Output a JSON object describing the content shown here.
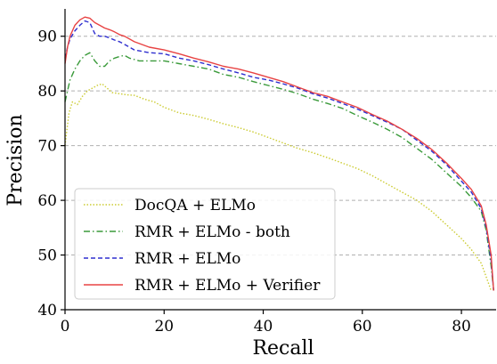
{
  "chart_data": {
    "type": "line",
    "xlabel": "Recall",
    "ylabel": "Precision",
    "xlim": [
      0,
      87
    ],
    "ylim": [
      40,
      95
    ],
    "xticks": [
      0,
      20,
      40,
      60,
      80
    ],
    "yticks": [
      40,
      50,
      60,
      70,
      80,
      90
    ],
    "grid": "horizontal dashed",
    "legend_position": "lower-left",
    "series": [
      {
        "name": "DocQA + ELMo",
        "color": "#cccc33",
        "style": "dotted",
        "points": [
          [
            0,
            70
          ],
          [
            0.4,
            73
          ],
          [
            0.8,
            76
          ],
          [
            1.5,
            78
          ],
          [
            2.5,
            77.5
          ],
          [
            3.5,
            79
          ],
          [
            4.5,
            80
          ],
          [
            5.5,
            80.5
          ],
          [
            6.5,
            81
          ],
          [
            7.5,
            81.3
          ],
          [
            8.5,
            80.5
          ],
          [
            9.5,
            79.7
          ],
          [
            11,
            79.5
          ],
          [
            12.5,
            79.3
          ],
          [
            14,
            79.2
          ],
          [
            16,
            78.5
          ],
          [
            18,
            78
          ],
          [
            20,
            77
          ],
          [
            23,
            76
          ],
          [
            26,
            75.5
          ],
          [
            29,
            74.8
          ],
          [
            32,
            74
          ],
          [
            35,
            73.3
          ],
          [
            38,
            72.5
          ],
          [
            41,
            71.5
          ],
          [
            44,
            70.5
          ],
          [
            47,
            69.5
          ],
          [
            50,
            68.7
          ],
          [
            53,
            67.8
          ],
          [
            56,
            66.8
          ],
          [
            59,
            65.8
          ],
          [
            62,
            64.5
          ],
          [
            65,
            63
          ],
          [
            68,
            61.5
          ],
          [
            71,
            60
          ],
          [
            74,
            58
          ],
          [
            77,
            55.5
          ],
          [
            80,
            53
          ],
          [
            82,
            51
          ],
          [
            84,
            48.5
          ],
          [
            85,
            46
          ],
          [
            86,
            43.5
          ]
        ]
      },
      {
        "name": "RMR + ELMo - both",
        "color": "#3a9a3a",
        "style": "dashdot",
        "points": [
          [
            0,
            78
          ],
          [
            0.5,
            80
          ],
          [
            1,
            82
          ],
          [
            2,
            84
          ],
          [
            3,
            85.5
          ],
          [
            4,
            86.5
          ],
          [
            5,
            87
          ],
          [
            6,
            85.5
          ],
          [
            7,
            84.5
          ],
          [
            8,
            84.5
          ],
          [
            9,
            85.5
          ],
          [
            10,
            86
          ],
          [
            11,
            86.3
          ],
          [
            12,
            86.5
          ],
          [
            13,
            86
          ],
          [
            15,
            85.5
          ],
          [
            17,
            85.5
          ],
          [
            20,
            85.5
          ],
          [
            23,
            85
          ],
          [
            26,
            84.5
          ],
          [
            29,
            84
          ],
          [
            32,
            83
          ],
          [
            35,
            82.5
          ],
          [
            38,
            81.7
          ],
          [
            41,
            81
          ],
          [
            44,
            80.3
          ],
          [
            47,
            79.5
          ],
          [
            50,
            78.5
          ],
          [
            53,
            77.7
          ],
          [
            56,
            76.8
          ],
          [
            59,
            75.5
          ],
          [
            62,
            74.3
          ],
          [
            65,
            73
          ],
          [
            68,
            71.5
          ],
          [
            71,
            69.5
          ],
          [
            74,
            67.5
          ],
          [
            77,
            65
          ],
          [
            80,
            62.5
          ],
          [
            82,
            60.5
          ],
          [
            84,
            58
          ],
          [
            85,
            54.5
          ],
          [
            86,
            48
          ],
          [
            86.5,
            43.5
          ]
        ]
      },
      {
        "name": "RMR + ELMo",
        "color": "#2f2fcf",
        "style": "dashed",
        "points": [
          [
            0,
            86
          ],
          [
            0.5,
            88
          ],
          [
            1,
            89.5
          ],
          [
            2,
            91
          ],
          [
            3,
            92
          ],
          [
            4,
            92.8
          ],
          [
            5,
            92.5
          ],
          [
            6,
            90.5
          ],
          [
            7,
            90
          ],
          [
            8,
            90
          ],
          [
            9,
            89.7
          ],
          [
            10,
            89.3
          ],
          [
            11,
            89
          ],
          [
            12,
            88.5
          ],
          [
            14,
            87.5
          ],
          [
            17,
            87
          ],
          [
            20,
            86.8
          ],
          [
            23,
            86
          ],
          [
            26,
            85.5
          ],
          [
            29,
            84.8
          ],
          [
            32,
            84
          ],
          [
            35,
            83.3
          ],
          [
            38,
            82.5
          ],
          [
            41,
            82
          ],
          [
            44,
            81.3
          ],
          [
            47,
            80.5
          ],
          [
            50,
            79.5
          ],
          [
            53,
            78.7
          ],
          [
            56,
            77.7
          ],
          [
            59,
            76.7
          ],
          [
            62,
            75.5
          ],
          [
            65,
            74.3
          ],
          [
            68,
            73
          ],
          [
            71,
            71
          ],
          [
            74,
            69
          ],
          [
            77,
            66.5
          ],
          [
            80,
            63.5
          ],
          [
            82,
            61.5
          ],
          [
            84,
            58.5
          ],
          [
            85,
            55
          ],
          [
            86,
            49
          ],
          [
            86.5,
            43.5
          ]
        ]
      },
      {
        "name": "RMR + ELMo + Verifier",
        "color": "#e84343",
        "style": "solid",
        "points": [
          [
            0,
            85
          ],
          [
            0.5,
            88
          ],
          [
            1,
            90
          ],
          [
            2,
            92
          ],
          [
            3,
            93
          ],
          [
            4,
            93.5
          ],
          [
            5,
            93.3
          ],
          [
            6,
            92.5
          ],
          [
            7,
            92
          ],
          [
            8,
            91.5
          ],
          [
            9,
            91.2
          ],
          [
            10,
            90.8
          ],
          [
            11,
            90.3
          ],
          [
            12,
            90
          ],
          [
            14,
            89
          ],
          [
            17,
            88
          ],
          [
            20,
            87.5
          ],
          [
            23,
            86.8
          ],
          [
            26,
            86
          ],
          [
            29,
            85.3
          ],
          [
            32,
            84.5
          ],
          [
            35,
            84
          ],
          [
            38,
            83.3
          ],
          [
            41,
            82.5
          ],
          [
            44,
            81.7
          ],
          [
            47,
            80.7
          ],
          [
            50,
            79.7
          ],
          [
            53,
            79
          ],
          [
            56,
            78
          ],
          [
            59,
            77
          ],
          [
            62,
            75.7
          ],
          [
            65,
            74.5
          ],
          [
            68,
            73
          ],
          [
            71,
            71.3
          ],
          [
            74,
            69.3
          ],
          [
            77,
            66.8
          ],
          [
            80,
            64
          ],
          [
            82,
            62
          ],
          [
            84,
            59
          ],
          [
            85,
            55.5
          ],
          [
            86,
            50
          ],
          [
            86.5,
            43.5
          ]
        ]
      }
    ]
  }
}
